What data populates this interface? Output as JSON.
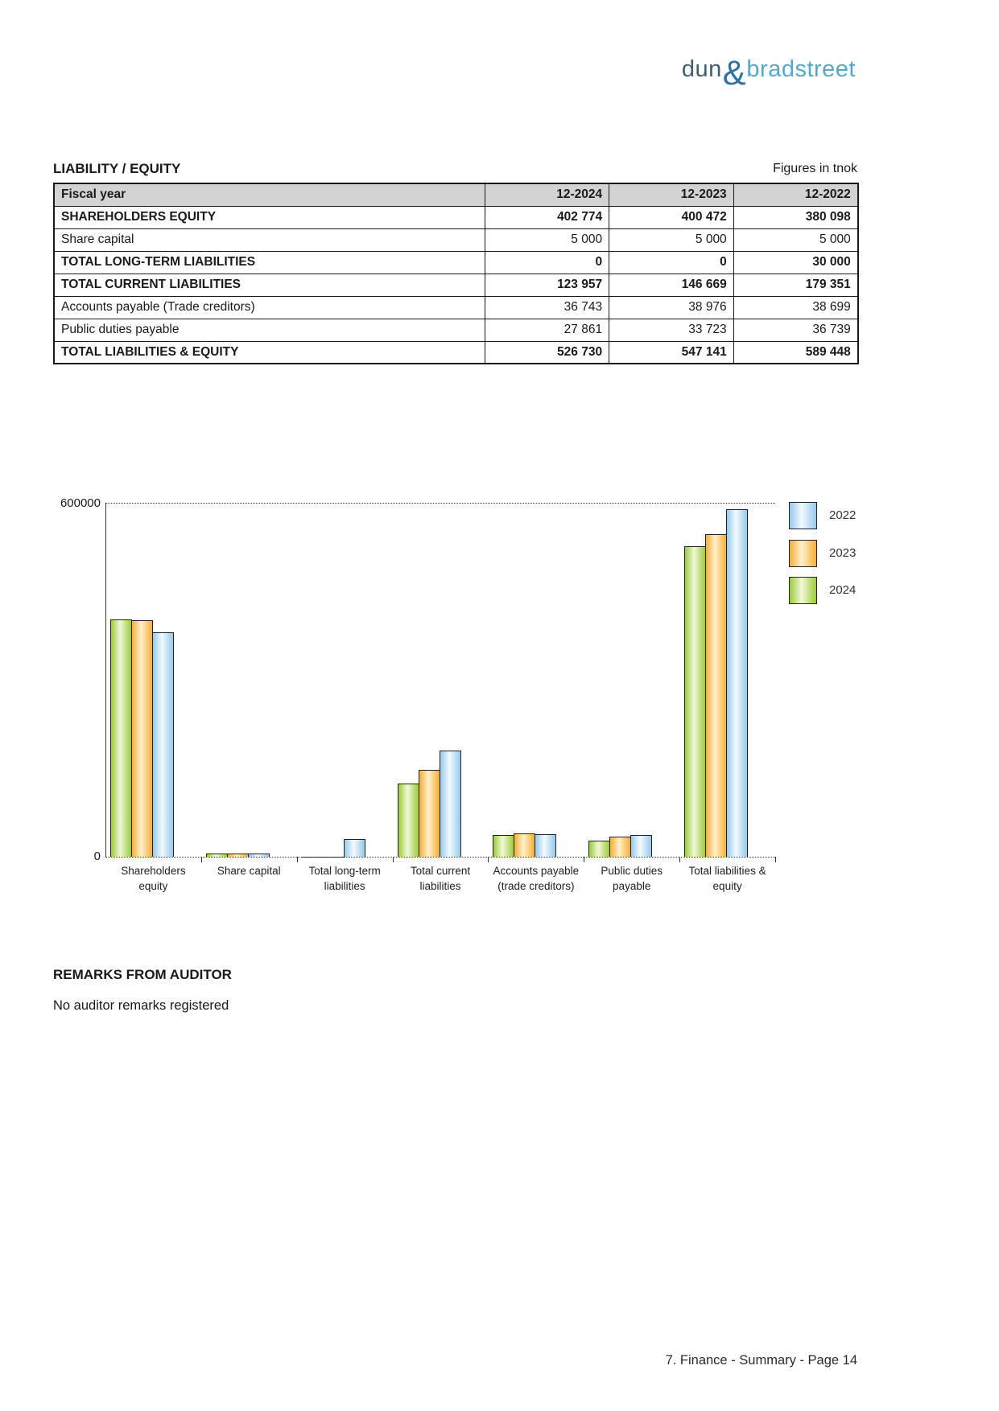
{
  "logo": {
    "word1": "dun",
    "ampersand": "&",
    "word2": "bradstreet",
    "colors": {
      "word1": "#3F5E71",
      "ampersand": "#2E729F",
      "word2": "#55A7CB"
    }
  },
  "section": {
    "title": "LIABILITY / EQUITY",
    "unit_note": "Figures in tnok"
  },
  "table": {
    "header": {
      "label": "Fiscal year",
      "cols": [
        "12-2024",
        "12-2023",
        "12-2022"
      ]
    },
    "rows": [
      {
        "label": "SHAREHOLDERS EQUITY",
        "bold": true,
        "values": [
          "402 774",
          "400 472",
          "380 098"
        ]
      },
      {
        "label": "Share capital",
        "bold": false,
        "values": [
          "5 000",
          "5 000",
          "5 000"
        ]
      },
      {
        "label": "TOTAL LONG-TERM LIABILITIES",
        "bold": true,
        "values": [
          "0",
          "0",
          "30 000"
        ]
      },
      {
        "label": "TOTAL CURRENT LIABILITIES",
        "bold": true,
        "values": [
          "123 957",
          "146 669",
          "179 351"
        ]
      },
      {
        "label": "Accounts payable (Trade creditors)",
        "bold": false,
        "values": [
          "36 743",
          "38 976",
          "38 699"
        ]
      },
      {
        "label": "Public duties payable",
        "bold": false,
        "values": [
          "27 861",
          "33 723",
          "36 739"
        ]
      },
      {
        "label": "TOTAL LIABILITIES & EQUITY",
        "bold": true,
        "values": [
          "526 730",
          "547 141",
          "589 448"
        ]
      }
    ]
  },
  "chart_data": {
    "type": "bar",
    "title": "",
    "xlabel": "",
    "ylabel": "",
    "ylim": [
      0,
      600000
    ],
    "ytick_labels": {
      "top": "600000",
      "bottom": "0"
    },
    "grid": "dotted line at 600000 and dotted baseline at 0",
    "legend_position": "right",
    "legend_order": [
      "2022",
      "2023",
      "2024"
    ],
    "categories": [
      [
        "Shareholders",
        "equity"
      ],
      [
        "Share capital"
      ],
      [
        "Total long-term",
        "liabilities"
      ],
      [
        "Total current",
        "liabilities"
      ],
      [
        "Accounts payable",
        "(trade creditors)"
      ],
      [
        "Public duties",
        "payable"
      ],
      [
        "Total liabilities &",
        "equity"
      ]
    ],
    "series": [
      {
        "name": "2024",
        "edge_color": "#9CCB3C",
        "mid_color": "#F1F8D8",
        "values": [
          402774,
          5000,
          0,
          123957,
          36743,
          27861,
          526730
        ]
      },
      {
        "name": "2023",
        "edge_color": "#F5AE38",
        "mid_color": "#FEF0CB",
        "values": [
          400472,
          5000,
          0,
          146669,
          38976,
          33723,
          547141
        ]
      },
      {
        "name": "2022",
        "edge_color": "#96C9EC",
        "mid_color": "#F2FAFE",
        "values": [
          380098,
          5000,
          30000,
          179351,
          38699,
          36739,
          589448
        ]
      }
    ]
  },
  "remarks": {
    "title": "REMARKS FROM AUDITOR",
    "body": "No auditor remarks registered"
  },
  "footer": {
    "text": "7. Finance - Summary - Page 14"
  }
}
